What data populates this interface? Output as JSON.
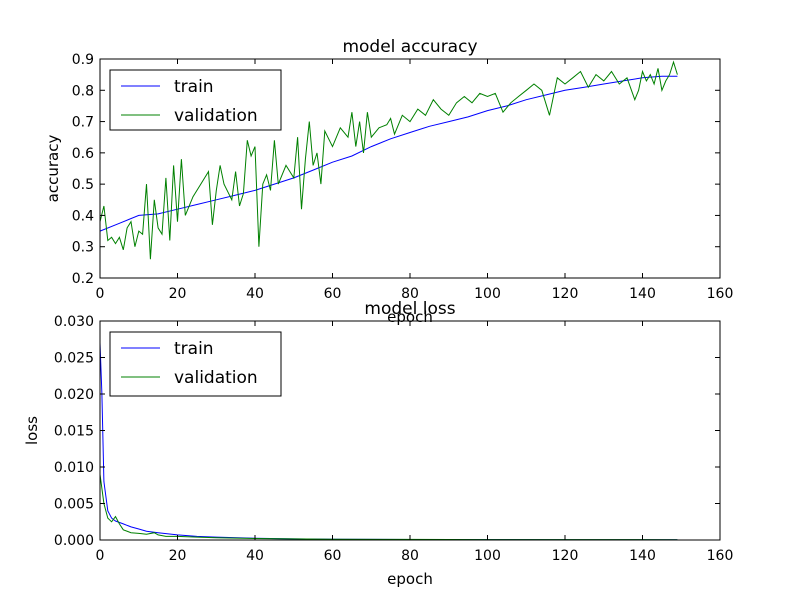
{
  "chart_data": [
    {
      "type": "line",
      "title": "model accuracy",
      "xlabel": "epoch",
      "ylabel": "accuracy",
      "xlim": [
        0,
        160
      ],
      "ylim": [
        0.2,
        0.9
      ],
      "xticks": [
        "0",
        "20",
        "40",
        "60",
        "80",
        "100",
        "120",
        "140",
        "160"
      ],
      "yticks": [
        "0.2",
        "0.3",
        "0.4",
        "0.5",
        "0.6",
        "0.7",
        "0.8",
        "0.9"
      ],
      "legend": {
        "placement": "upper-left"
      },
      "grid": false,
      "series": [
        {
          "name": "train",
          "color": "#0000ff",
          "points": [
            [
              0,
              0.35
            ],
            [
              5,
              0.375
            ],
            [
              10,
              0.4
            ],
            [
              15,
              0.405
            ],
            [
              20,
              0.42
            ],
            [
              25,
              0.435
            ],
            [
              30,
              0.45
            ],
            [
              35,
              0.465
            ],
            [
              40,
              0.48
            ],
            [
              45,
              0.5
            ],
            [
              50,
              0.52
            ],
            [
              55,
              0.545
            ],
            [
              60,
              0.57
            ],
            [
              65,
              0.59
            ],
            [
              70,
              0.62
            ],
            [
              75,
              0.645
            ],
            [
              80,
              0.665
            ],
            [
              85,
              0.685
            ],
            [
              90,
              0.7
            ],
            [
              95,
              0.715
            ],
            [
              100,
              0.735
            ],
            [
              105,
              0.75
            ],
            [
              110,
              0.77
            ],
            [
              115,
              0.785
            ],
            [
              120,
              0.8
            ],
            [
              125,
              0.81
            ],
            [
              130,
              0.82
            ],
            [
              135,
              0.83
            ],
            [
              140,
              0.84
            ],
            [
              145,
              0.845
            ],
            [
              149,
              0.845
            ]
          ]
        },
        {
          "name": "validation",
          "color": "#008000",
          "points": [
            [
              0,
              0.38
            ],
            [
              1,
              0.43
            ],
            [
              2,
              0.32
            ],
            [
              3,
              0.33
            ],
            [
              4,
              0.31
            ],
            [
              5,
              0.33
            ],
            [
              6,
              0.29
            ],
            [
              7,
              0.36
            ],
            [
              8,
              0.38
            ],
            [
              9,
              0.3
            ],
            [
              10,
              0.35
            ],
            [
              11,
              0.34
            ],
            [
              12,
              0.5
            ],
            [
              13,
              0.26
            ],
            [
              14,
              0.45
            ],
            [
              15,
              0.36
            ],
            [
              16,
              0.34
            ],
            [
              17,
              0.52
            ],
            [
              18,
              0.32
            ],
            [
              19,
              0.56
            ],
            [
              20,
              0.38
            ],
            [
              21,
              0.58
            ],
            [
              22,
              0.4
            ],
            [
              24,
              0.46
            ],
            [
              26,
              0.5
            ],
            [
              28,
              0.54
            ],
            [
              29,
              0.37
            ],
            [
              30,
              0.48
            ],
            [
              31,
              0.56
            ],
            [
              32,
              0.5
            ],
            [
              34,
              0.45
            ],
            [
              35,
              0.54
            ],
            [
              36,
              0.43
            ],
            [
              37,
              0.47
            ],
            [
              38,
              0.64
            ],
            [
              39,
              0.59
            ],
            [
              40,
              0.62
            ],
            [
              41,
              0.3
            ],
            [
              42,
              0.5
            ],
            [
              43,
              0.53
            ],
            [
              44,
              0.48
            ],
            [
              45,
              0.64
            ],
            [
              46,
              0.5
            ],
            [
              48,
              0.56
            ],
            [
              50,
              0.52
            ],
            [
              51,
              0.65
            ],
            [
              52,
              0.42
            ],
            [
              53,
              0.58
            ],
            [
              54,
              0.7
            ],
            [
              55,
              0.56
            ],
            [
              56,
              0.6
            ],
            [
              57,
              0.5
            ],
            [
              58,
              0.67
            ],
            [
              60,
              0.62
            ],
            [
              62,
              0.68
            ],
            [
              64,
              0.65
            ],
            [
              65,
              0.73
            ],
            [
              66,
              0.62
            ],
            [
              67,
              0.7
            ],
            [
              68,
              0.6
            ],
            [
              69,
              0.73
            ],
            [
              70,
              0.65
            ],
            [
              72,
              0.68
            ],
            [
              74,
              0.69
            ],
            [
              75,
              0.71
            ],
            [
              76,
              0.66
            ],
            [
              78,
              0.72
            ],
            [
              80,
              0.7
            ],
            [
              82,
              0.74
            ],
            [
              84,
              0.72
            ],
            [
              86,
              0.77
            ],
            [
              88,
              0.74
            ],
            [
              90,
              0.72
            ],
            [
              92,
              0.76
            ],
            [
              94,
              0.78
            ],
            [
              96,
              0.76
            ],
            [
              98,
              0.79
            ],
            [
              100,
              0.78
            ],
            [
              102,
              0.79
            ],
            [
              104,
              0.73
            ],
            [
              106,
              0.76
            ],
            [
              108,
              0.78
            ],
            [
              110,
              0.8
            ],
            [
              112,
              0.82
            ],
            [
              114,
              0.8
            ],
            [
              116,
              0.72
            ],
            [
              118,
              0.84
            ],
            [
              120,
              0.82
            ],
            [
              122,
              0.84
            ],
            [
              124,
              0.86
            ],
            [
              126,
              0.81
            ],
            [
              128,
              0.85
            ],
            [
              130,
              0.83
            ],
            [
              132,
              0.86
            ],
            [
              134,
              0.82
            ],
            [
              136,
              0.84
            ],
            [
              138,
              0.77
            ],
            [
              139,
              0.8
            ],
            [
              140,
              0.86
            ],
            [
              141,
              0.83
            ],
            [
              142,
              0.85
            ],
            [
              143,
              0.82
            ],
            [
              144,
              0.87
            ],
            [
              145,
              0.8
            ],
            [
              146,
              0.83
            ],
            [
              147,
              0.85
            ],
            [
              148,
              0.89
            ],
            [
              149,
              0.85
            ]
          ]
        }
      ]
    },
    {
      "type": "line",
      "title": "model loss",
      "xlabel": "epoch",
      "ylabel": "loss",
      "xlim": [
        0,
        160
      ],
      "ylim": [
        0.0,
        0.03
      ],
      "xticks": [
        "0",
        "20",
        "40",
        "60",
        "80",
        "100",
        "120",
        "140",
        "160"
      ],
      "yticks": [
        "0.000",
        "0.005",
        "0.010",
        "0.015",
        "0.020",
        "0.025",
        "0.030"
      ],
      "legend": {
        "placement": "upper-left"
      },
      "grid": false,
      "series": [
        {
          "name": "train",
          "color": "#0000ff",
          "points": [
            [
              0,
              0.027
            ],
            [
              0.5,
              0.02
            ],
            [
              1,
              0.008
            ],
            [
              2,
              0.004
            ],
            [
              3,
              0.003
            ],
            [
              4,
              0.0026
            ],
            [
              6,
              0.0022
            ],
            [
              8,
              0.0018
            ],
            [
              10,
              0.0015
            ],
            [
              12,
              0.0012
            ],
            [
              15,
              0.001
            ],
            [
              20,
              0.0007
            ],
            [
              25,
              0.0005
            ],
            [
              30,
              0.0004
            ],
            [
              40,
              0.00025
            ],
            [
              50,
              0.00015
            ],
            [
              60,
              0.0001
            ],
            [
              80,
              7e-05
            ],
            [
              100,
              5e-05
            ],
            [
              120,
              4e-05
            ],
            [
              149,
              3e-05
            ]
          ]
        },
        {
          "name": "validation",
          "color": "#008000",
          "points": [
            [
              0,
              0.009
            ],
            [
              1,
              0.005
            ],
            [
              2,
              0.003
            ],
            [
              3,
              0.0025
            ],
            [
              4,
              0.0032
            ],
            [
              5,
              0.0022
            ],
            [
              6,
              0.0014
            ],
            [
              8,
              0.001
            ],
            [
              10,
              0.0009
            ],
            [
              12,
              0.0008
            ],
            [
              14,
              0.001
            ],
            [
              15,
              0.0007
            ],
            [
              17,
              0.0005
            ],
            [
              20,
              0.0005
            ],
            [
              25,
              0.0004
            ],
            [
              30,
              0.0003
            ],
            [
              40,
              0.0002
            ],
            [
              60,
              0.0001
            ],
            [
              80,
              8e-05
            ],
            [
              100,
              6e-05
            ],
            [
              120,
              5e-05
            ],
            [
              149,
              4e-05
            ]
          ]
        }
      ]
    }
  ]
}
